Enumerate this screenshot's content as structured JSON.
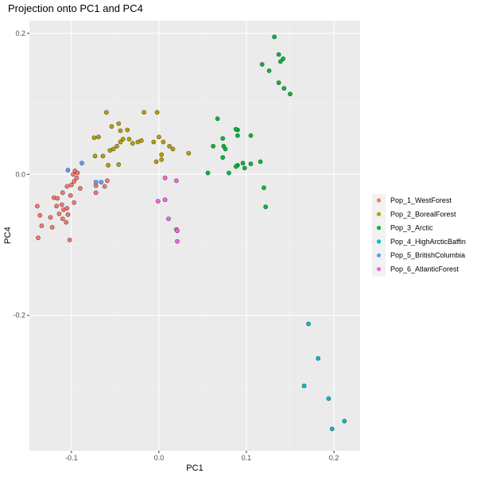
{
  "chart_data": {
    "type": "scatter",
    "title": "Projection onto PC1 and PC4",
    "xlabel": "PC1",
    "ylabel": "PC4",
    "xlim": [
      -0.148,
      0.23
    ],
    "ylim": [
      -0.392,
      0.218
    ],
    "x_ticks": [
      -0.1,
      0.0,
      0.1,
      0.2
    ],
    "x_tick_labels": [
      "-0.1",
      "0.0",
      "0.1",
      "0.2"
    ],
    "y_ticks": [
      -0.2,
      0.0,
      0.2
    ],
    "y_tick_labels": [
      "-0.2",
      "0.0",
      "0.2"
    ],
    "grid": true,
    "legend_position": "right",
    "series": [
      {
        "name": "Pop_1_WestForest",
        "color": "#F8766D",
        "points": [
          [
            -0.139,
            -0.045
          ],
          [
            -0.136,
            -0.058
          ],
          [
            -0.134,
            -0.073
          ],
          [
            -0.138,
            -0.09
          ],
          [
            -0.124,
            -0.061
          ],
          [
            -0.122,
            -0.075
          ],
          [
            -0.12,
            -0.033
          ],
          [
            -0.116,
            -0.034
          ],
          [
            -0.117,
            -0.045
          ],
          [
            -0.114,
            -0.056
          ],
          [
            -0.111,
            -0.043
          ],
          [
            -0.109,
            -0.05
          ],
          [
            -0.11,
            -0.063
          ],
          [
            -0.106,
            -0.068
          ],
          [
            -0.104,
            -0.057
          ],
          [
            -0.105,
            -0.048
          ],
          [
            -0.11,
            -0.026
          ],
          [
            -0.105,
            -0.017
          ],
          [
            -0.101,
            -0.03
          ],
          [
            -0.097,
            -0.04
          ],
          [
            -0.1,
            -0.015
          ],
          [
            -0.097,
            -0.01
          ],
          [
            -0.094,
            -0.005
          ],
          [
            -0.09,
            -0.02
          ],
          [
            -0.098,
            0.0
          ],
          [
            -0.096,
            0.005
          ],
          [
            -0.093,
            0.002
          ],
          [
            -0.102,
            -0.093
          ],
          [
            -0.072,
            -0.026
          ],
          [
            -0.072,
            -0.016
          ],
          [
            -0.062,
            -0.017
          ],
          [
            -0.059,
            -0.009
          ]
        ]
      },
      {
        "name": "Pop_2_BorealForest",
        "color": "#B79F00",
        "points": [
          [
            -0.06,
            0.088
          ],
          [
            -0.054,
            0.068
          ],
          [
            -0.046,
            0.072
          ],
          [
            -0.044,
            0.062
          ],
          [
            -0.036,
            0.063
          ],
          [
            -0.017,
            0.088
          ],
          [
            -0.002,
            0.088
          ],
          [
            -0.074,
            0.052
          ],
          [
            -0.069,
            0.053
          ],
          [
            -0.052,
            0.036
          ],
          [
            -0.048,
            0.04
          ],
          [
            -0.044,
            0.046
          ],
          [
            -0.041,
            0.05
          ],
          [
            -0.034,
            0.05
          ],
          [
            -0.02,
            0.048
          ],
          [
            -0.024,
            0.046
          ],
          [
            -0.03,
            0.044
          ],
          [
            -0.006,
            0.046
          ],
          [
            0.0,
            0.053
          ],
          [
            0.003,
            0.028
          ],
          [
            0.005,
            0.046
          ],
          [
            0.012,
            0.04
          ],
          [
            0.016,
            0.036
          ],
          [
            0.034,
            0.03
          ],
          [
            -0.056,
            0.034
          ],
          [
            -0.064,
            0.026
          ],
          [
            -0.073,
            0.026
          ],
          [
            -0.058,
            0.013
          ],
          [
            -0.046,
            0.014
          ],
          [
            0.003,
            0.021
          ],
          [
            -0.003,
            0.018
          ]
        ]
      },
      {
        "name": "Pop_3_Arctic",
        "color": "#00BA38",
        "points": [
          [
            0.132,
            0.195
          ],
          [
            0.137,
            0.17
          ],
          [
            0.142,
            0.164
          ],
          [
            0.139,
            0.16
          ],
          [
            0.118,
            0.156
          ],
          [
            0.126,
            0.147
          ],
          [
            0.137,
            0.13
          ],
          [
            0.143,
            0.122
          ],
          [
            0.15,
            0.114
          ],
          [
            0.067,
            0.079
          ],
          [
            0.09,
            0.063
          ],
          [
            0.088,
            0.064
          ],
          [
            0.09,
            0.055
          ],
          [
            0.105,
            0.055
          ],
          [
            0.073,
            0.051
          ],
          [
            0.062,
            0.04
          ],
          [
            0.074,
            0.04
          ],
          [
            0.076,
            0.036
          ],
          [
            0.073,
            0.024
          ],
          [
            0.09,
            0.013
          ],
          [
            0.088,
            0.011
          ],
          [
            0.096,
            0.016
          ],
          [
            0.098,
            0.009
          ],
          [
            0.105,
            0.015
          ],
          [
            0.116,
            0.018
          ],
          [
            0.08,
            0.002
          ],
          [
            0.056,
            0.002
          ],
          [
            0.12,
            -0.019
          ],
          [
            0.122,
            -0.046
          ]
        ]
      },
      {
        "name": "Pop_4_HighArcticBaffin",
        "color": "#00BFC4",
        "points": [
          [
            0.171,
            -0.212
          ],
          [
            0.182,
            -0.261
          ],
          [
            0.166,
            -0.3
          ],
          [
            0.194,
            -0.318
          ],
          [
            0.212,
            -0.35
          ],
          [
            0.198,
            -0.361
          ]
        ]
      },
      {
        "name": "Pop_5_BritishColumbia",
        "color": "#619CFF",
        "points": [
          [
            -0.088,
            0.016
          ],
          [
            -0.104,
            0.006
          ],
          [
            -0.072,
            -0.011
          ],
          [
            -0.066,
            -0.011
          ]
        ]
      },
      {
        "name": "Pop_6_AtlanticForest",
        "color": "#F564E3",
        "points": [
          [
            0.007,
            -0.005
          ],
          [
            0.02,
            -0.009
          ],
          [
            -0.001,
            -0.038
          ],
          [
            0.007,
            -0.036
          ],
          [
            0.011,
            -0.063
          ],
          [
            0.02,
            -0.078
          ],
          [
            0.021,
            -0.08
          ],
          [
            0.021,
            -0.095
          ]
        ]
      }
    ]
  }
}
